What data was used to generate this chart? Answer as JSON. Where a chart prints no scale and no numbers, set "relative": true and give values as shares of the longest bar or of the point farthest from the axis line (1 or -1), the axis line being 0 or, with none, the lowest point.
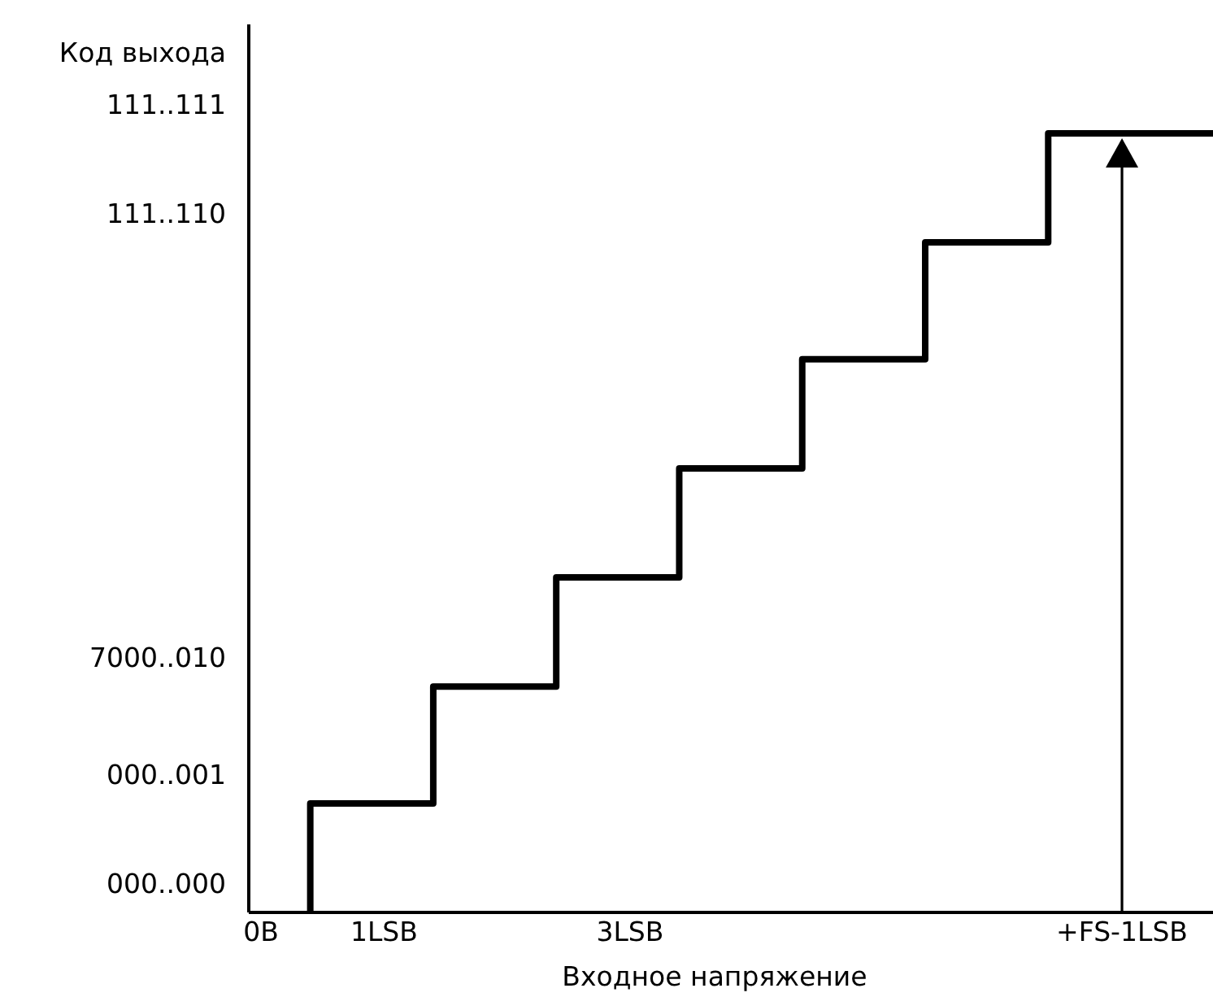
{
  "chart_data": {
    "type": "step",
    "xlabel": "Входное напряжение",
    "ylabel": "Код выхода",
    "relative": true,
    "x": [
      0.5,
      0.5,
      1.5,
      2.5,
      3.5,
      4.5,
      5.5,
      6.5,
      7.84
    ],
    "values": [
      0,
      0.14,
      0.29,
      0.43,
      0.57,
      0.71,
      0.86,
      1,
      1
    ],
    "color": "#000000",
    "xlim": [
      0,
      7.84
    ],
    "xticks": [
      {
        "value": 0.1,
        "label": "0B"
      },
      {
        "value": 1.1,
        "label": "1LSB"
      },
      {
        "value": 3.1,
        "label": "3LSB"
      },
      {
        "value": 7.1,
        "label": "+FS-1LSB"
      }
    ],
    "annotations": [
      "000..000",
      "000..001",
      "7000..010",
      "111..110",
      "111..111"
    ],
    "marker": "none",
    "line_style": "solid"
  }
}
